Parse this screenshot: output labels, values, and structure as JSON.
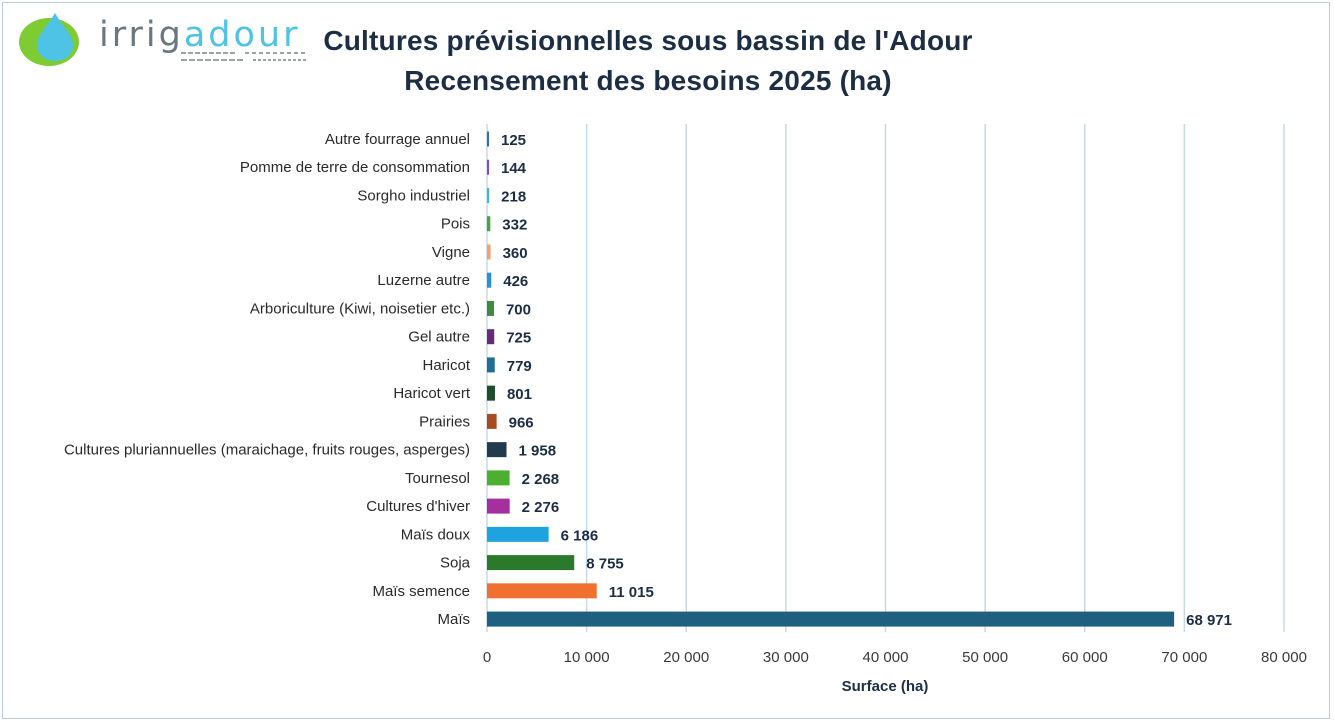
{
  "header": {
    "logo_text_part1": "irrig",
    "logo_text_part2": "adour",
    "title_line1": "Cultures prévisionnelles sous bassin de l'Adour",
    "title_line2": "Recensement des besoins 2025  (ha)"
  },
  "colors": {
    "logo_green": "#7fcc32",
    "logo_blue": "#4ec3e6",
    "title": "#1c2d44",
    "grid": "#c9d8e6"
  },
  "chart_data": {
    "type": "bar",
    "orientation": "horizontal",
    "xlabel": "Surface (ha)",
    "ylabel": "",
    "xlim": [
      0,
      80000
    ],
    "x_ticks": [
      0,
      10000,
      20000,
      30000,
      40000,
      50000,
      60000,
      70000,
      80000
    ],
    "x_tick_labels": [
      "0",
      "10 000",
      "20 000",
      "30 000",
      "40 000",
      "50 000",
      "60 000",
      "70 000",
      "80 000"
    ],
    "grid": true,
    "legend": "none",
    "categories": [
      "Autre fourrage annuel",
      "Pomme de terre de consommation",
      "Sorgho industriel",
      "Pois",
      "Vigne",
      "Luzerne autre",
      "Arboriculture (Kiwi, noisetier etc.)",
      "Gel autre",
      "Haricot",
      "Haricot vert",
      "Prairies",
      "Cultures pluriannuelles (maraichage, fruits rouges, asperges)",
      "Tournesol",
      "Cultures d'hiver",
      "Maïs doux",
      "Soja",
      "Maïs semence",
      "Maïs"
    ],
    "values": [
      125,
      144,
      218,
      332,
      360,
      426,
      700,
      725,
      779,
      801,
      966,
      1958,
      2268,
      2276,
      6186,
      8755,
      11015,
      68971
    ],
    "value_labels": [
      "125",
      "144",
      "218",
      "332",
      "360",
      "426",
      "700",
      "725",
      "779",
      "801",
      "966",
      "1 958",
      "2 268",
      "2 276",
      "6 186",
      "8 755",
      "11 015",
      "68 971"
    ],
    "bar_colors": [
      "#2f6fa5",
      "#8e44c7",
      "#3fb6e0",
      "#41a83e",
      "#f0a07a",
      "#2c8fd6",
      "#3e8a3e",
      "#6a2a7a",
      "#1f6f94",
      "#1e4d2b",
      "#a84b1e",
      "#213a4f",
      "#4caf32",
      "#a52f9e",
      "#1da4df",
      "#2b7a2b",
      "#f07030",
      "#1f5f80"
    ]
  }
}
